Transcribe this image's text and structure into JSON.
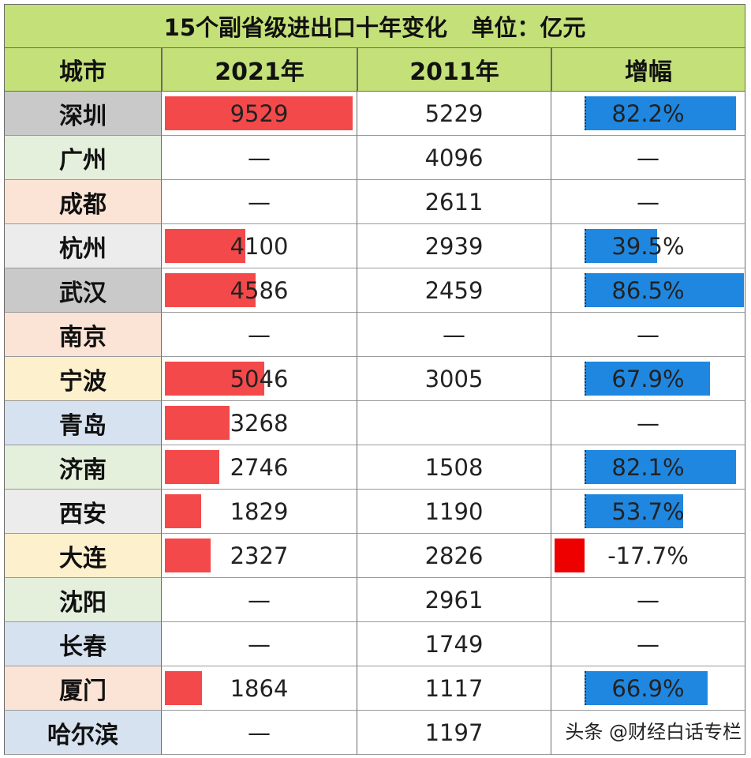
{
  "title": "15个副省级进出口十年变化   单位：亿元",
  "headers": [
    "城市",
    "2021年",
    "2011年",
    "增幅"
  ],
  "colors": {
    "title_bg": "#c4e079",
    "bar_2021": "#f4494a",
    "bar_growth": "#1f87e0",
    "bar_negative": "#ee0000"
  },
  "rows": [
    {
      "city": "深圳",
      "v2021": "9529",
      "v2011": "5229",
      "growth": "82.2%",
      "city_bg": "#c9c9c9"
    },
    {
      "city": "广州",
      "v2021": "—",
      "v2011": "4096",
      "growth": "—",
      "city_bg": "#e4efdc"
    },
    {
      "city": "成都",
      "v2021": "—",
      "v2011": "2611",
      "growth": "—",
      "city_bg": "#fbe4d6"
    },
    {
      "city": "杭州",
      "v2021": "4100",
      "v2011": "2939",
      "growth": "39.5%",
      "city_bg": "#ececec"
    },
    {
      "city": "武汉",
      "v2021": "4586",
      "v2011": "2459",
      "growth": "86.5%",
      "city_bg": "#c9c9c9"
    },
    {
      "city": "南京",
      "v2021": "—",
      "v2011": "—",
      "growth": "—",
      "city_bg": "#fbe4d6"
    },
    {
      "city": "宁波",
      "v2021": "5046",
      "v2011": "3005",
      "growth": "67.9%",
      "city_bg": "#fdf0cc"
    },
    {
      "city": "青岛",
      "v2021": "3268",
      "v2011": "",
      "growth": "—",
      "city_bg": "#d7e2f1"
    },
    {
      "city": "济南",
      "v2021": "2746",
      "v2011": "1508",
      "growth": "82.1%",
      "city_bg": "#e4efdc"
    },
    {
      "city": "西安",
      "v2021": "1829",
      "v2011": "1190",
      "growth": "53.7%",
      "city_bg": "#ececec"
    },
    {
      "city": "大连",
      "v2021": "2327",
      "v2011": "2826",
      "growth": "-17.7%",
      "city_bg": "#fdf0cc"
    },
    {
      "city": "沈阳",
      "v2021": "—",
      "v2011": "2961",
      "growth": "—",
      "city_bg": "#e4efdc"
    },
    {
      "city": "长春",
      "v2021": "—",
      "v2011": "1749",
      "growth": "—",
      "city_bg": "#d7e2f1"
    },
    {
      "city": "厦门",
      "v2021": "1864",
      "v2011": "1117",
      "growth": "66.9%",
      "city_bg": "#fbe4d6"
    },
    {
      "city": "哈尔滨",
      "v2021": "—",
      "v2011": "1197",
      "growth": "",
      "city_bg": "#d7e2f1"
    }
  ],
  "chart_data": {
    "type": "table",
    "title": "15个副省级进出口十年变化   单位：亿元",
    "columns": [
      "城市",
      "2021年",
      "2011年",
      "增幅"
    ],
    "categories": [
      "深圳",
      "广州",
      "成都",
      "杭州",
      "武汉",
      "南京",
      "宁波",
      "青岛",
      "济南",
      "西安",
      "大连",
      "沈阳",
      "长春",
      "厦门",
      "哈尔滨"
    ],
    "series": [
      {
        "name": "2021年",
        "values": [
          9529,
          null,
          null,
          4100,
          4586,
          null,
          5046,
          3268,
          2746,
          1829,
          2327,
          null,
          null,
          1864,
          null
        ]
      },
      {
        "name": "2011年",
        "values": [
          5229,
          4096,
          2611,
          2939,
          2459,
          null,
          3005,
          null,
          1508,
          1190,
          2826,
          2961,
          1749,
          1117,
          1197
        ]
      },
      {
        "name": "增幅",
        "values": [
          82.2,
          null,
          null,
          39.5,
          86.5,
          null,
          67.9,
          null,
          82.1,
          53.7,
          -17.7,
          null,
          null,
          66.9,
          null
        ]
      }
    ]
  },
  "watermark": "头条 @财经白话专栏"
}
